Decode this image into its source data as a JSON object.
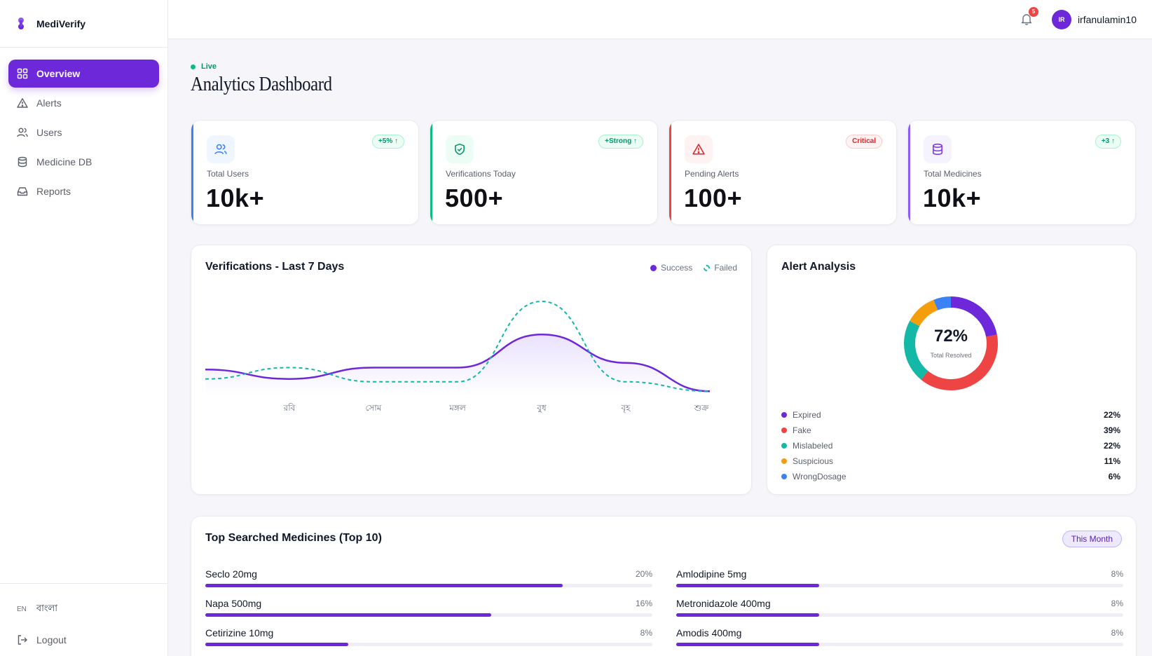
{
  "brand": {
    "name": "MediVerify"
  },
  "sidebar": {
    "items": [
      {
        "label": "Overview",
        "icon": "grid-icon",
        "active": true
      },
      {
        "label": "Alerts",
        "icon": "alert-triangle-icon",
        "active": false
      },
      {
        "label": "Users",
        "icon": "users-icon",
        "active": false
      },
      {
        "label": "Medicine DB",
        "icon": "database-icon",
        "active": false
      },
      {
        "label": "Reports",
        "icon": "inbox-icon",
        "active": false
      }
    ],
    "lang_code": "EN",
    "lang_label": "বাংলা",
    "logout_label": "Logout"
  },
  "topbar": {
    "notification_count": "5",
    "avatar_initials": "IR",
    "username": "irfanulamin10"
  },
  "header": {
    "live_label": "Live",
    "title": "Analytics Dashboard"
  },
  "stats": [
    {
      "label": "Total Users",
      "value": "10k+",
      "badge": "+5% ↑",
      "accent": "#3b82f6",
      "icon": "users-icon"
    },
    {
      "label": "Verifications Today",
      "value": "500+",
      "badge": "+Strong ↑",
      "accent": "#10b981",
      "icon": "shield-check-icon"
    },
    {
      "label": "Pending Alerts",
      "value": "100+",
      "badge": "Critical",
      "accent": "#ef4444",
      "icon": "alert-triangle-icon"
    },
    {
      "label": "Total Medicines",
      "value": "10k+",
      "badge": "+3 ↑",
      "accent": "#8b5cf6",
      "icon": "database-icon"
    }
  ],
  "verifications": {
    "title": "Verifications - Last 7 Days",
    "legend_success": "Success",
    "legend_failed": "Failed",
    "colors": {
      "success": "#6d28d9",
      "failed": "#14b8a6"
    },
    "chart_data": {
      "type": "line",
      "title": "Verifications - Last 7 Days",
      "x": [
        "",
        "রবি",
        "সোম",
        "মঙ্গল",
        "বুধ",
        "বৃহ",
        "শুক্র"
      ],
      "ylim": [
        0,
        100
      ],
      "series": [
        {
          "name": "Success",
          "style": "solid-area",
          "values": [
            28,
            18,
            30,
            30,
            65,
            35,
            5
          ]
        },
        {
          "name": "Failed",
          "style": "dashed",
          "values": [
            18,
            30,
            15,
            15,
            100,
            15,
            5
          ]
        }
      ],
      "grid": false
    }
  },
  "alerts": {
    "title": "Alert Analysis",
    "center_value": "72%",
    "center_label": "Total Resolved",
    "items": [
      {
        "label": "Expired",
        "pct": "22%",
        "value": 22,
        "color": "#6d28d9"
      },
      {
        "label": "Fake",
        "pct": "39%",
        "value": 39,
        "color": "#ef4444"
      },
      {
        "label": "Mislabeled",
        "pct": "22%",
        "value": 22,
        "color": "#14b8a6"
      },
      {
        "label": "Suspicious",
        "pct": "11%",
        "value": 11,
        "color": "#f59e0b"
      },
      {
        "label": "WrongDosage",
        "pct": "6%",
        "value": 6,
        "color": "#3b82f6"
      }
    ]
  },
  "top_medicines": {
    "title": "Top Searched Medicines (Top 10)",
    "filter_label": "This Month",
    "left": [
      {
        "name": "Seclo 20mg",
        "pct": "20%",
        "value": 20
      },
      {
        "name": "Napa 500mg",
        "pct": "16%",
        "value": 16
      },
      {
        "name": "Cetirizine 10mg",
        "pct": "8%",
        "value": 8
      }
    ],
    "right": [
      {
        "name": "Amlodipine 5mg",
        "pct": "8%",
        "value": 8
      },
      {
        "name": "Metronidazole 400mg",
        "pct": "8%",
        "value": 8
      },
      {
        "name": "Amodis 400mg",
        "pct": "8%",
        "value": 8
      }
    ]
  }
}
